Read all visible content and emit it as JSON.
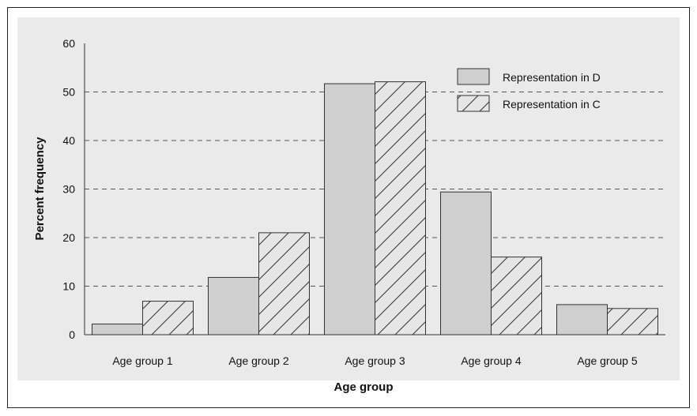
{
  "chart_data": {
    "type": "bar",
    "title": "",
    "xlabel": "Age group",
    "ylabel": "Percent frequency",
    "categories": [
      "Age group 1",
      "Age group 2",
      "Age group 3",
      "Age group 4",
      "Age group 5"
    ],
    "series": [
      {
        "name": "Representation in D",
        "values": [
          2.2,
          11.8,
          51.7,
          29.4,
          6.2
        ],
        "fill": "#cfcfcf",
        "pattern": "solid"
      },
      {
        "name": "Representation in C",
        "values": [
          6.9,
          21.0,
          52.1,
          16.0,
          5.4
        ],
        "fill": "#e6e6e6",
        "pattern": "diagonal-hatch"
      }
    ],
    "ylim": [
      0,
      60
    ],
    "yticks": [
      "0",
      "10",
      "20",
      "30",
      "40",
      "50",
      "60"
    ],
    "grid": "horizontal-dashed",
    "legend_position": "top-right",
    "plot_background": "#eaeaea"
  }
}
